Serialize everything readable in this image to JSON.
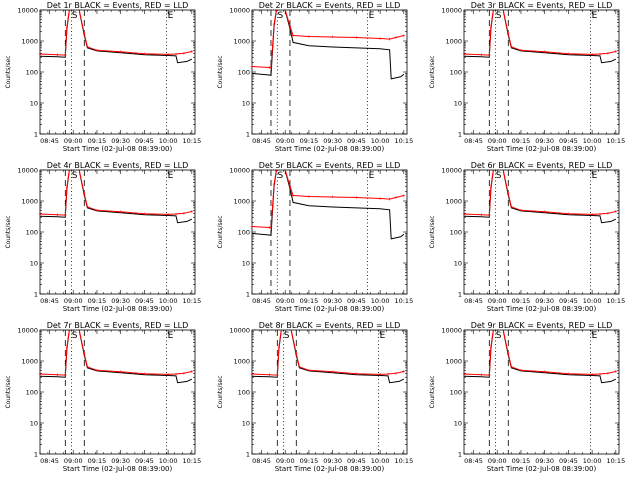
{
  "chart_data": {
    "type": "line",
    "panels": [
      {
        "title": "Det 1r BLACK = Events, RED = LLD",
        "profile": "shared"
      },
      {
        "title": "Det 2r BLACK = Events, RED = LLD",
        "profile": "high"
      },
      {
        "title": "Det 3r BLACK = Events, RED = LLD",
        "profile": "shared"
      },
      {
        "title": "Det 4r BLACK = Events, RED = LLD",
        "profile": "shared"
      },
      {
        "title": "Det 5r BLACK = Events, RED = LLD",
        "profile": "high"
      },
      {
        "title": "Det 6r BLACK = Events, RED = LLD",
        "profile": "shared"
      },
      {
        "title": "Det 7r BLACK = Events, RED = LLD",
        "profile": "shared"
      },
      {
        "title": "Det 8r BLACK = Events, RED = LLD",
        "profile": "shared"
      },
      {
        "title": "Det 9r BLACK = Events, RED = LLD",
        "profile": "shared"
      }
    ],
    "xlabel": "Start Time (02-Jul-08 08:39:00)",
    "ylabel": "Counts/sec",
    "x_range": [
      "08:39",
      "10:17"
    ],
    "y_range": [
      1,
      10000
    ],
    "y_scale": "log",
    "x_ticks_shared": [
      "08:45",
      "09:00",
      "09:15",
      "09:30",
      "09:45",
      "10:00",
      "10:15"
    ],
    "x_ticks_high": [
      "08:45",
      "09:00",
      "09:15",
      "09:30",
      "09:45",
      "10:00",
      "10:15"
    ],
    "y_ticks": [
      1,
      10,
      100,
      1000,
      10000
    ],
    "y_tick_labels": [
      "1",
      "10",
      "100",
      "1000",
      "10000"
    ],
    "markers": {
      "shared": [
        {
          "time": "08:55",
          "style": "dashed",
          "label": ""
        },
        {
          "time": "08:59",
          "style": "dotted",
          "label": "S"
        },
        {
          "time": "09:07",
          "style": "dashed",
          "label": ""
        },
        {
          "time": "09:59",
          "style": "dotted",
          "label": "E"
        }
      ],
      "high": [
        {
          "time": "08:51",
          "style": "dashed",
          "label": ""
        },
        {
          "time": "08:55",
          "style": "dotted",
          "label": "S"
        },
        {
          "time": "09:03",
          "style": "dashed",
          "label": ""
        },
        {
          "time": "09:52",
          "style": "dotted",
          "label": "E"
        }
      ]
    },
    "series": {
      "shared": {
        "events": {
          "color": "#000000",
          "points": [
            [
              "08:39",
              320
            ],
            [
              "08:50",
              310
            ],
            [
              "08:55",
              300
            ],
            [
              "08:56",
              2500
            ],
            [
              "08:58",
              15000
            ],
            [
              "09:03",
              15000
            ],
            [
              "09:07",
              1500
            ],
            [
              "09:09",
              600
            ],
            [
              "09:15",
              480
            ],
            [
              "09:30",
              420
            ],
            [
              "09:45",
              360
            ],
            [
              "10:00",
              340
            ],
            [
              "10:05",
              330
            ],
            [
              "10:06",
              200
            ],
            [
              "10:12",
              220
            ],
            [
              "10:15",
              260
            ]
          ]
        },
        "lld": {
          "color": "#ff0000",
          "points": [
            [
              "08:39",
              380
            ],
            [
              "08:50",
              360
            ],
            [
              "08:55",
              350
            ],
            [
              "08:56",
              2800
            ],
            [
              "08:58",
              15000
            ],
            [
              "09:03",
              15000
            ],
            [
              "09:07",
              1700
            ],
            [
              "09:09",
              650
            ],
            [
              "09:15",
              500
            ],
            [
              "09:30",
              450
            ],
            [
              "09:45",
              390
            ],
            [
              "10:00",
              370
            ],
            [
              "10:05",
              380
            ],
            [
              "10:10",
              400
            ],
            [
              "10:15",
              460
            ]
          ]
        }
      },
      "high": {
        "events": {
          "color": "#000000",
          "points": [
            [
              "08:39",
              90
            ],
            [
              "08:50",
              80
            ],
            [
              "08:51",
              78
            ],
            [
              "08:53",
              3000
            ],
            [
              "08:55",
              15000
            ],
            [
              "08:59",
              15000
            ],
            [
              "09:03",
              2500
            ],
            [
              "09:05",
              900
            ],
            [
              "09:15",
              700
            ],
            [
              "09:30",
              640
            ],
            [
              "09:45",
              600
            ],
            [
              "10:00",
              560
            ],
            [
              "10:06",
              520
            ],
            [
              "10:07",
              60
            ],
            [
              "10:13",
              70
            ],
            [
              "10:15",
              85
            ]
          ]
        },
        "lld": {
          "color": "#ff0000",
          "points": [
            [
              "08:39",
              150
            ],
            [
              "08:50",
              140
            ],
            [
              "08:51",
              135
            ],
            [
              "08:53",
              3500
            ],
            [
              "08:55",
              15000
            ],
            [
              "08:59",
              15000
            ],
            [
              "09:03",
              3000
            ],
            [
              "09:05",
              1500
            ],
            [
              "09:15",
              1400
            ],
            [
              "09:30",
              1350
            ],
            [
              "09:45",
              1300
            ],
            [
              "10:00",
              1200
            ],
            [
              "10:06",
              1150
            ],
            [
              "10:10",
              1300
            ],
            [
              "10:15",
              1500
            ]
          ]
        }
      }
    }
  }
}
